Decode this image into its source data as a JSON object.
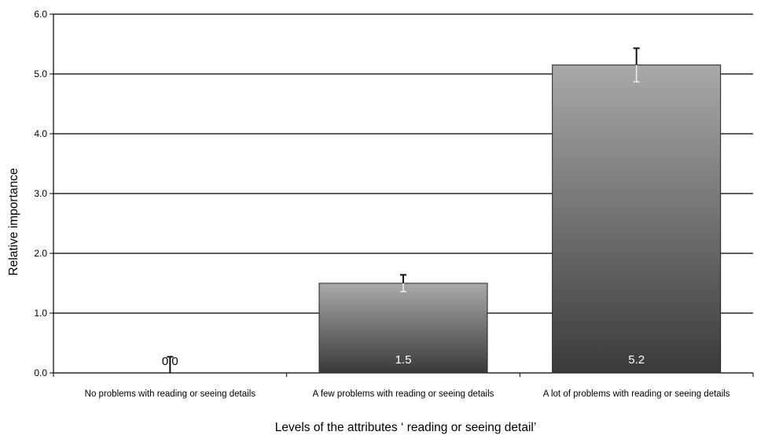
{
  "chart_data": {
    "type": "bar",
    "title": "",
    "xlabel": "Levels of the attributes ‘ reading or seeing detail’",
    "ylabel": "Relative importance",
    "ylim": [
      0,
      6
    ],
    "yticks": [
      "0.0",
      "1.0",
      "2.0",
      "3.0",
      "4.0",
      "5.0",
      "6.0"
    ],
    "grid": true,
    "legend": "none",
    "categories": [
      "No problems with reading or seeing details",
      "A few problems with reading or seeing details",
      "A lot of problems with reading or seeing details"
    ],
    "values": [
      0.0,
      1.5,
      5.15
    ],
    "error_low": [
      0.0,
      0.14,
      0.28
    ],
    "error_high": [
      0.27,
      0.14,
      0.28
    ],
    "data_labels": [
      "0.0",
      "1.5",
      "5.2"
    ],
    "colors": {
      "bar_top": "#a9a9a9",
      "bar_bottom": "#3a3a3a",
      "grid": "#000000"
    }
  }
}
